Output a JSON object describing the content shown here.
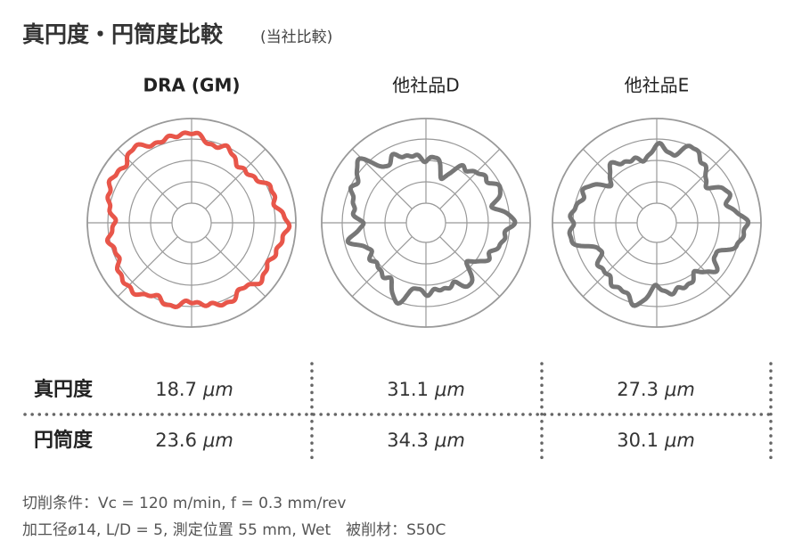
{
  "header": {
    "title": "真円度・円筒度比較",
    "subtitle": "(当社比較)"
  },
  "plots": [
    {
      "label": "DRA (GM)",
      "color": "#e8564a"
    },
    {
      "label": "他社品D",
      "color": "#777777"
    },
    {
      "label": "他社品E",
      "color": "#777777"
    }
  ],
  "table": {
    "rows": [
      {
        "header": "真円度",
        "cells": [
          {
            "value": "18.7",
            "unit": "μm"
          },
          {
            "value": "31.1",
            "unit": "μm"
          },
          {
            "value": "27.3",
            "unit": "μm"
          }
        ]
      },
      {
        "header": "円筒度",
        "cells": [
          {
            "value": "23.6",
            "unit": "μm"
          },
          {
            "value": "34.3",
            "unit": "μm"
          },
          {
            "value": "30.1",
            "unit": "μm"
          }
        ]
      }
    ]
  },
  "notes": [
    "切削条件：Vc = 120 m/min, f = 0.3 mm/rev",
    "加工径ø14, L/D = 5, 測定位置 55 mm, Wet　被削材：S50C"
  ]
}
